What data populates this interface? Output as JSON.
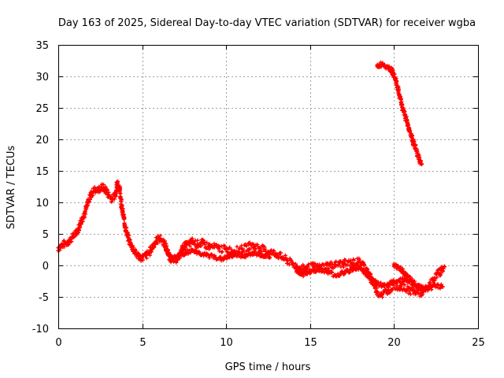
{
  "chart_data": {
    "type": "scatter",
    "title": "Day 163 of 2025, Sidereal Day-to-day VTEC variation (SDTVAR) for receiver wgba",
    "xlabel": "GPS time / hours",
    "ylabel": "SDTVAR / TECUs",
    "xlim": [
      0,
      25
    ],
    "ylim": [
      -10,
      35
    ],
    "xticks": [
      0,
      5,
      10,
      15,
      20,
      25
    ],
    "yticks": [
      -10,
      -5,
      0,
      5,
      10,
      15,
      20,
      25,
      30,
      35
    ],
    "grid": true,
    "marker": "plus",
    "color": "#ff0000",
    "series": [
      {
        "name": "track-main",
        "band": 0.6,
        "points": [
          [
            0.0,
            2.8
          ],
          [
            0.3,
            3.3
          ],
          [
            0.6,
            3.8
          ],
          [
            0.9,
            4.6
          ],
          [
            1.2,
            5.8
          ],
          [
            1.4,
            7.2
          ],
          [
            1.6,
            8.6
          ],
          [
            1.8,
            10.3
          ],
          [
            2.0,
            11.5
          ],
          [
            2.2,
            12.0
          ],
          [
            2.4,
            12.0
          ],
          [
            2.6,
            12.4
          ],
          [
            2.8,
            12.1
          ],
          [
            3.0,
            11.2
          ],
          [
            3.2,
            10.6
          ],
          [
            3.4,
            11.2
          ],
          [
            3.5,
            13.2
          ],
          [
            3.65,
            12.3
          ],
          [
            3.8,
            9.0
          ],
          [
            4.0,
            6.0
          ],
          [
            4.2,
            4.0
          ],
          [
            4.4,
            3.0
          ],
          [
            4.6,
            2.0
          ],
          [
            4.8,
            1.4
          ],
          [
            5.0,
            1.2
          ],
          [
            5.2,
            1.5
          ],
          [
            5.4,
            2.0
          ],
          [
            5.6,
            2.8
          ],
          [
            5.8,
            3.8
          ],
          [
            6.0,
            4.3
          ],
          [
            6.2,
            4.0
          ],
          [
            6.4,
            3.0
          ],
          [
            6.6,
            1.5
          ],
          [
            6.8,
            0.8
          ],
          [
            7.0,
            1.0
          ],
          [
            7.2,
            1.5
          ],
          [
            7.4,
            2.6
          ],
          [
            7.6,
            3.2
          ],
          [
            7.8,
            3.4
          ],
          [
            8.0,
            3.8
          ],
          [
            8.3,
            3.4
          ],
          [
            8.6,
            3.5
          ],
          [
            9.0,
            3.0
          ],
          [
            9.5,
            2.8
          ],
          [
            10.0,
            2.5
          ],
          [
            10.5,
            2.3
          ],
          [
            11.0,
            2.6
          ],
          [
            11.5,
            3.2
          ],
          [
            12.0,
            2.8
          ],
          [
            12.5,
            2.2
          ],
          [
            13.0,
            1.8
          ],
          [
            13.5,
            1.0
          ],
          [
            14.0,
            0.2
          ],
          [
            14.4,
            -0.6
          ],
          [
            14.8,
            -0.4
          ],
          [
            15.2,
            -0.2
          ],
          [
            15.6,
            -0.4
          ],
          [
            16.0,
            0.0
          ],
          [
            16.5,
            0.1
          ],
          [
            17.0,
            0.3
          ],
          [
            17.5,
            0.4
          ],
          [
            17.9,
            0.6
          ],
          [
            18.2,
            0.0
          ],
          [
            18.5,
            -1.5
          ],
          [
            18.8,
            -3.0
          ],
          [
            19.0,
            -4.2
          ],
          [
            19.3,
            -4.6
          ],
          [
            19.6,
            -4.0
          ],
          [
            20.0,
            -3.2
          ],
          [
            20.4,
            -3.4
          ],
          [
            20.8,
            -3.8
          ],
          [
            21.2,
            -4.2
          ],
          [
            21.6,
            -4.4
          ],
          [
            22.0,
            -3.6
          ],
          [
            22.4,
            -2.0
          ],
          [
            22.8,
            -0.8
          ],
          [
            23.0,
            -0.2
          ]
        ]
      },
      {
        "name": "track-secondary",
        "band": 0.35,
        "points": [
          [
            6.4,
            2.4
          ],
          [
            6.8,
            1.2
          ],
          [
            7.2,
            1.6
          ],
          [
            7.6,
            2.0
          ],
          [
            8.0,
            2.4
          ],
          [
            8.4,
            2.0
          ],
          [
            8.8,
            1.6
          ],
          [
            9.3,
            1.4
          ],
          [
            9.7,
            1.0
          ],
          [
            10.2,
            1.4
          ],
          [
            10.6,
            1.8
          ],
          [
            11.0,
            1.4
          ],
          [
            11.6,
            2.0
          ],
          [
            12.2,
            1.6
          ],
          [
            12.6,
            1.2
          ]
        ]
      },
      {
        "name": "track-lower",
        "band": 0.35,
        "points": [
          [
            14.2,
            -0.8
          ],
          [
            14.6,
            -1.4
          ],
          [
            15.0,
            -1.0
          ],
          [
            15.5,
            -0.6
          ],
          [
            16.0,
            -0.9
          ],
          [
            16.5,
            -1.6
          ],
          [
            17.0,
            -1.2
          ],
          [
            17.5,
            -0.6
          ],
          [
            18.0,
            -0.4
          ],
          [
            18.4,
            -1.6
          ],
          [
            18.8,
            -2.6
          ],
          [
            19.4,
            -3.2
          ],
          [
            20.0,
            -2.6
          ],
          [
            20.6,
            -2.2
          ],
          [
            21.2,
            -3.0
          ],
          [
            21.8,
            -4.0
          ]
        ]
      },
      {
        "name": "track-right",
        "band": 0.35,
        "points": [
          [
            20.0,
            0.0
          ],
          [
            20.4,
            -0.6
          ],
          [
            20.8,
            -1.8
          ],
          [
            21.2,
            -2.8
          ],
          [
            21.6,
            -3.4
          ],
          [
            22.0,
            -3.8
          ],
          [
            22.5,
            -3.2
          ],
          [
            22.9,
            -3.4
          ]
        ]
      },
      {
        "name": "track-high",
        "band": 0.45,
        "points": [
          [
            19.0,
            31.6
          ],
          [
            19.3,
            32.0
          ],
          [
            19.6,
            31.6
          ],
          [
            19.9,
            30.8
          ],
          [
            20.1,
            29.4
          ],
          [
            20.3,
            27.2
          ],
          [
            20.5,
            25.0
          ],
          [
            20.7,
            23.4
          ],
          [
            20.9,
            21.6
          ],
          [
            21.1,
            20.0
          ],
          [
            21.3,
            18.4
          ],
          [
            21.5,
            16.8
          ],
          [
            21.65,
            16.1
          ]
        ]
      }
    ]
  }
}
